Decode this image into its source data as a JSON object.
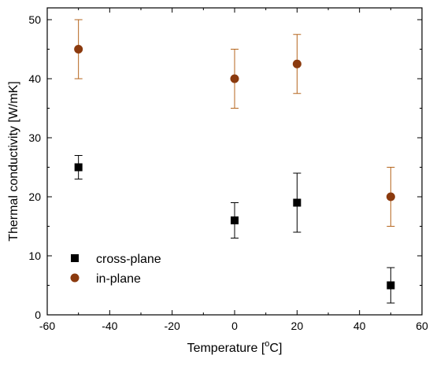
{
  "chart_data": {
    "type": "scatter",
    "title": "",
    "xlabel": "Temperature [",
    "xlabel_sup": "o",
    "xlabel_tail": "C]",
    "ylabel": "Thermal conductivity [W/mK]",
    "xlim": [
      -60,
      60
    ],
    "ylim": [
      0,
      52
    ],
    "xticks": [
      -60,
      -40,
      -20,
      0,
      20,
      40,
      60
    ],
    "yticks": [
      0,
      10,
      20,
      30,
      40,
      50
    ],
    "grid": false,
    "legend_position": "bottom-left",
    "series": [
      {
        "name": "cross-plane",
        "marker": "square",
        "color": "#000000",
        "errorbar_color": "#000000",
        "points": [
          {
            "x": -50,
            "y": 25,
            "err": 2
          },
          {
            "x": 0,
            "y": 16,
            "err": 3
          },
          {
            "x": 20,
            "y": 19,
            "err": 5
          },
          {
            "x": 50,
            "y": 5,
            "err": 3
          }
        ]
      },
      {
        "name": "in-plane",
        "marker": "circle",
        "color": "#8B3A0E",
        "errorbar_color": "#B5651D",
        "points": [
          {
            "x": -50,
            "y": 45,
            "err": 5
          },
          {
            "x": 0,
            "y": 40,
            "err": 5
          },
          {
            "x": 20,
            "y": 42.5,
            "err": 5
          },
          {
            "x": 50,
            "y": 20,
            "err": 5
          }
        ]
      }
    ]
  }
}
